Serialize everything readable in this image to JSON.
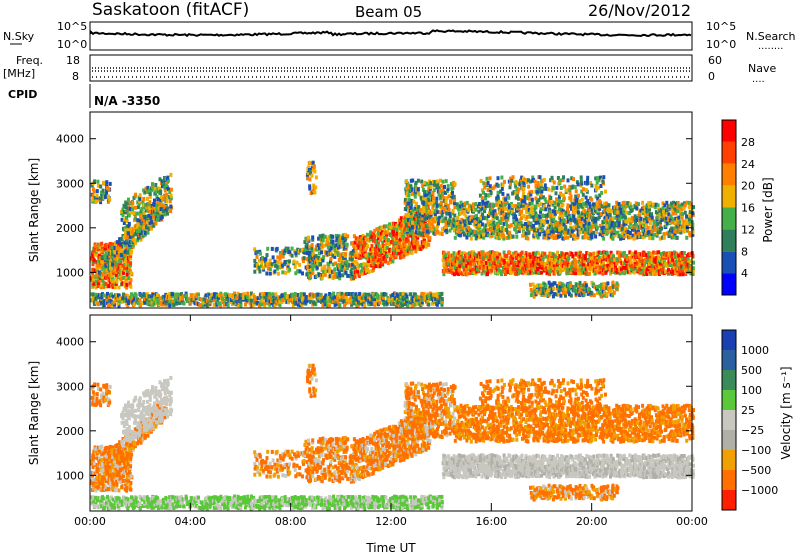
{
  "header": {
    "station": "Saskatoon (fitACF)",
    "beam": "Beam 05",
    "date": "26/Nov/2012"
  },
  "noise_panel": {
    "left_label": "N.Sky",
    "right_label": "N.Search",
    "right_marker": "........",
    "ticks_left": [
      "10^5",
      "10^0"
    ],
    "ticks_right": [
      "10^5",
      "10^0"
    ]
  },
  "freq_panel": {
    "left_label_1": "Freq.",
    "left_label_2": "[MHz]",
    "ticks_left": [
      "18",
      "8"
    ],
    "right_label": "Nave",
    "right_marker": "....",
    "ticks_right": [
      "60",
      "0"
    ]
  },
  "cpid": {
    "label": "CPID",
    "value": "N/A  -3350"
  },
  "chart_data": [
    {
      "type": "heatmap",
      "name": "power",
      "ylabel": "Slant Range [km]",
      "yticks": [
        "1000",
        "2000",
        "3000",
        "4000"
      ],
      "ylim": [
        200,
        4600
      ],
      "xlim": [
        "00:00",
        "24:00"
      ],
      "colorbar": {
        "label": "Power [dB]",
        "ticks": [
          "4",
          "8",
          "12",
          "16",
          "20",
          "24",
          "28"
        ],
        "colors": [
          "#0000ff",
          "#1a4fb5",
          "#2f7f5a",
          "#45b04a",
          "#f0b000",
          "#ff8000",
          "#ff4000",
          "#ff0000"
        ]
      }
    },
    {
      "type": "heatmap",
      "name": "velocity",
      "ylabel": "Slant Range [km]",
      "yticks": [
        "1000",
        "2000",
        "3000",
        "4000"
      ],
      "ylim": [
        200,
        4600
      ],
      "xlim": [
        "00:00",
        "24:00"
      ],
      "xticks": [
        "00:00",
        "04:00",
        "08:00",
        "12:00",
        "16:00",
        "20:00",
        "00:00"
      ],
      "xlabel": "Time UT",
      "colorbar": {
        "label": "Velocity [m s⁻¹]",
        "ticks": [
          "1000",
          "500",
          "100",
          "25",
          "−25",
          "−100",
          "−500",
          "−1000"
        ],
        "colors": [
          "#1a3fb0",
          "#2a5fa0",
          "#3a8a5a",
          "#5ac83a",
          "#c8c8c0",
          "#b0b0a8",
          "#f0a000",
          "#ff7000",
          "#ff2000"
        ]
      }
    }
  ]
}
